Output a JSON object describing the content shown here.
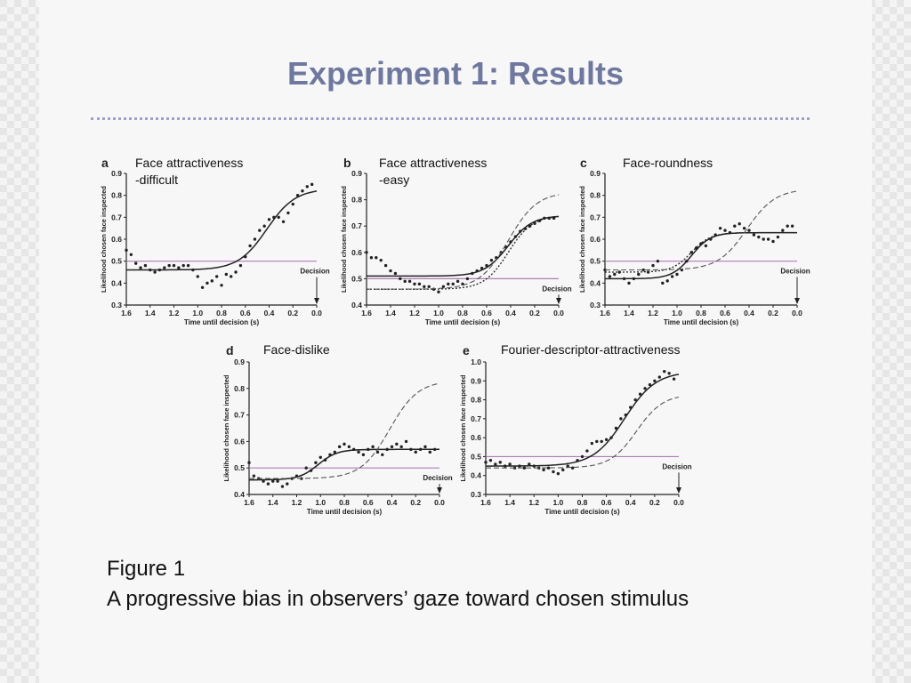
{
  "slide": {
    "title": "Experiment 1: Results",
    "caption_label": "Figure 1",
    "caption_text": "A progressive bias in observers’ gaze toward chosen stimulus"
  },
  "colors": {
    "title": "#6f789f",
    "rule": "#9aa2c6",
    "baseline": "#b07ab8",
    "ink": "#222222"
  },
  "chart_data": [
    {
      "panel": "a",
      "type": "scatter",
      "subtitle": "Face attractiveness\n-difficult",
      "xlabel": "Time until decision (s)",
      "ylabel": "Likelihood chosen face inspected",
      "xticks": [
        "1.6",
        "1.4",
        "1.2",
        "1.0",
        "0.8",
        "0.6",
        "0.4",
        "0.2",
        "0.0"
      ],
      "yticks": [
        "0.9",
        "0.8",
        "0.7",
        "0.6",
        "0.5",
        "0.4",
        "0.3"
      ],
      "xlim": [
        1.6,
        0.0
      ],
      "ylim": [
        0.3,
        0.9
      ],
      "annotation": "Decision",
      "baseline": 0.5,
      "series": [
        {
          "kind": "points",
          "x": [
            1.6,
            1.56,
            1.52,
            1.48,
            1.44,
            1.4,
            1.36,
            1.32,
            1.28,
            1.24,
            1.2,
            1.16,
            1.12,
            1.08,
            1.04,
            1.0,
            0.96,
            0.92,
            0.88,
            0.84,
            0.8,
            0.76,
            0.72,
            0.68,
            0.64,
            0.6,
            0.56,
            0.52,
            0.48,
            0.44,
            0.4,
            0.36,
            0.32,
            0.28,
            0.24,
            0.2,
            0.16,
            0.12,
            0.08,
            0.04
          ],
          "y": [
            0.55,
            0.53,
            0.49,
            0.47,
            0.48,
            0.46,
            0.45,
            0.46,
            0.47,
            0.48,
            0.48,
            0.47,
            0.48,
            0.48,
            0.46,
            0.43,
            0.38,
            0.4,
            0.41,
            0.43,
            0.39,
            0.44,
            0.43,
            0.45,
            0.48,
            0.52,
            0.57,
            0.6,
            0.64,
            0.66,
            0.69,
            0.7,
            0.7,
            0.68,
            0.72,
            0.76,
            0.8,
            0.82,
            0.84,
            0.85
          ]
        },
        {
          "kind": "solid",
          "fit": {
            "base": 0.46,
            "top": 0.83,
            "mid": 0.42,
            "scale": 0.12
          }
        }
      ]
    },
    {
      "panel": "b",
      "type": "scatter",
      "subtitle": "Face attractiveness\n-easy",
      "xlabel": "Time until decision (s)",
      "ylabel": "Likelihood chosen face inspected",
      "xticks": [
        "1.6",
        "1.4",
        "1.2",
        "1.0",
        "0.8",
        "0.6",
        "0.4",
        "0.2",
        "0.0"
      ],
      "yticks": [
        "0.9",
        "0.8",
        "0.7",
        "0.6",
        "0.5",
        "0.4"
      ],
      "xlim": [
        1.6,
        0.0
      ],
      "ylim": [
        0.4,
        0.9
      ],
      "annotation": "Decision",
      "baseline": 0.5,
      "series": [
        {
          "kind": "points",
          "x": [
            1.6,
            1.56,
            1.52,
            1.48,
            1.44,
            1.4,
            1.36,
            1.32,
            1.28,
            1.24,
            1.2,
            1.16,
            1.12,
            1.08,
            1.04,
            1.0,
            0.96,
            0.92,
            0.88,
            0.84,
            0.8,
            0.76,
            0.72,
            0.68,
            0.64,
            0.6,
            0.56,
            0.52,
            0.48,
            0.44,
            0.4,
            0.36,
            0.32,
            0.28,
            0.24,
            0.2,
            0.16,
            0.12,
            0.08,
            0.04
          ],
          "y": [
            0.6,
            0.58,
            0.58,
            0.57,
            0.55,
            0.53,
            0.52,
            0.5,
            0.49,
            0.49,
            0.48,
            0.48,
            0.47,
            0.47,
            0.46,
            0.45,
            0.47,
            0.48,
            0.48,
            0.49,
            0.48,
            0.5,
            0.52,
            0.53,
            0.54,
            0.55,
            0.57,
            0.58,
            0.6,
            0.62,
            0.64,
            0.66,
            0.68,
            0.69,
            0.7,
            0.71,
            0.72,
            0.73,
            0.73,
            0.73
          ]
        },
        {
          "kind": "solid",
          "fit": {
            "base": 0.51,
            "top": 0.74,
            "mid": 0.42,
            "scale": 0.1
          }
        },
        {
          "kind": "dotted",
          "fit": {
            "base": 0.46,
            "top": 0.74,
            "mid": 0.42,
            "scale": 0.1
          }
        },
        {
          "kind": "dashed",
          "fit": {
            "base": 0.46,
            "top": 0.83,
            "mid": 0.42,
            "scale": 0.12
          }
        }
      ]
    },
    {
      "panel": "c",
      "type": "scatter",
      "subtitle": "Face-roundness",
      "xlabel": "Time until decision (s)",
      "ylabel": "Likelihood chosen face inspected",
      "xticks": [
        "1.6",
        "1.4",
        "1.2",
        "1.0",
        "0.8",
        "0.6",
        "0.4",
        "0.2",
        "0.0"
      ],
      "yticks": [
        "0.9",
        "0.8",
        "0.7",
        "0.6",
        "0.5",
        "0.4",
        "0.3"
      ],
      "xlim": [
        1.6,
        0.0
      ],
      "ylim": [
        0.3,
        0.9
      ],
      "annotation": "Decision",
      "baseline": 0.5,
      "series": [
        {
          "kind": "points",
          "x": [
            1.6,
            1.56,
            1.52,
            1.48,
            1.44,
            1.4,
            1.36,
            1.32,
            1.28,
            1.24,
            1.2,
            1.16,
            1.12,
            1.08,
            1.04,
            1.0,
            0.96,
            0.92,
            0.88,
            0.84,
            0.8,
            0.76,
            0.72,
            0.68,
            0.64,
            0.6,
            0.56,
            0.52,
            0.48,
            0.44,
            0.4,
            0.36,
            0.32,
            0.28,
            0.24,
            0.2,
            0.16,
            0.12,
            0.08,
            0.04
          ],
          "y": [
            0.46,
            0.43,
            0.44,
            0.45,
            0.42,
            0.4,
            0.42,
            0.44,
            0.46,
            0.45,
            0.48,
            0.5,
            0.4,
            0.41,
            0.43,
            0.44,
            0.46,
            0.5,
            0.54,
            0.56,
            0.58,
            0.57,
            0.6,
            0.62,
            0.65,
            0.64,
            0.63,
            0.66,
            0.67,
            0.65,
            0.64,
            0.62,
            0.61,
            0.6,
            0.6,
            0.59,
            0.61,
            0.64,
            0.66,
            0.66
          ]
        },
        {
          "kind": "solid",
          "fit": {
            "base": 0.42,
            "top": 0.63,
            "mid": 0.88,
            "scale": 0.08
          }
        },
        {
          "kind": "dotted",
          "fit": {
            "base": 0.45,
            "top": 0.63,
            "mid": 0.88,
            "scale": 0.08
          }
        },
        {
          "kind": "dashed",
          "fit": {
            "base": 0.46,
            "top": 0.83,
            "mid": 0.42,
            "scale": 0.12
          }
        }
      ]
    },
    {
      "panel": "d",
      "type": "scatter",
      "subtitle": "Face-dislike",
      "xlabel": "Time until decision (s)",
      "ylabel": "Likelihood chosen face inspected",
      "xticks": [
        "1.6",
        "1.4",
        "1.2",
        "1.0",
        "0.8",
        "0.6",
        "0.4",
        "0.2",
        "0.0"
      ],
      "yticks": [
        "0.9",
        "0.8",
        "0.7",
        "0.6",
        "0.5",
        "0.4"
      ],
      "xlim": [
        1.6,
        0.0
      ],
      "ylim": [
        0.4,
        0.9
      ],
      "annotation": "Decision",
      "baseline": 0.5,
      "series": [
        {
          "kind": "points",
          "x": [
            1.6,
            1.56,
            1.52,
            1.48,
            1.44,
            1.4,
            1.36,
            1.32,
            1.28,
            1.24,
            1.2,
            1.16,
            1.12,
            1.08,
            1.04,
            1.0,
            0.96,
            0.92,
            0.88,
            0.84,
            0.8,
            0.76,
            0.72,
            0.68,
            0.64,
            0.6,
            0.56,
            0.52,
            0.48,
            0.44,
            0.4,
            0.36,
            0.32,
            0.28,
            0.24,
            0.2,
            0.16,
            0.12,
            0.08,
            0.04
          ],
          "y": [
            0.52,
            0.47,
            0.46,
            0.45,
            0.44,
            0.45,
            0.45,
            0.43,
            0.44,
            0.46,
            0.47,
            0.46,
            0.5,
            0.49,
            0.52,
            0.54,
            0.53,
            0.55,
            0.56,
            0.58,
            0.59,
            0.58,
            0.57,
            0.56,
            0.55,
            0.57,
            0.58,
            0.56,
            0.55,
            0.57,
            0.58,
            0.59,
            0.58,
            0.6,
            0.57,
            0.56,
            0.57,
            0.58,
            0.56,
            0.57
          ]
        },
        {
          "kind": "solid",
          "fit": {
            "base": 0.455,
            "top": 0.57,
            "mid": 1.02,
            "scale": 0.08
          }
        },
        {
          "kind": "dotted",
          "fit": {
            "base": 0.455,
            "top": 0.57,
            "mid": 1.02,
            "scale": 0.08
          }
        },
        {
          "kind": "dashed",
          "fit": {
            "base": 0.46,
            "top": 0.83,
            "mid": 0.42,
            "scale": 0.12
          }
        }
      ]
    },
    {
      "panel": "e",
      "type": "scatter",
      "subtitle": "Fourier-descriptor-attractiveness",
      "xlabel": "Time until decision (s)",
      "ylabel": "Likelihood chosen face inspected",
      "xticks": [
        "1.6",
        "1.4",
        "1.2",
        "1.0",
        "0.8",
        "0.6",
        "0.4",
        "0.2",
        "0.0"
      ],
      "yticks": [
        "1.0",
        "0.9",
        "0.8",
        "0.7",
        "0.6",
        "0.5",
        "0.4",
        "0.3"
      ],
      "xlim": [
        1.6,
        0.0
      ],
      "ylim": [
        0.3,
        1.0
      ],
      "annotation": "Decision",
      "baseline": 0.5,
      "series": [
        {
          "kind": "points",
          "x": [
            1.6,
            1.56,
            1.52,
            1.48,
            1.44,
            1.4,
            1.36,
            1.32,
            1.28,
            1.24,
            1.2,
            1.16,
            1.12,
            1.08,
            1.04,
            1.0,
            0.96,
            0.92,
            0.88,
            0.84,
            0.8,
            0.76,
            0.72,
            0.68,
            0.64,
            0.6,
            0.56,
            0.52,
            0.48,
            0.44,
            0.4,
            0.36,
            0.32,
            0.28,
            0.24,
            0.2,
            0.16,
            0.12,
            0.08,
            0.04
          ],
          "y": [
            0.47,
            0.48,
            0.46,
            0.47,
            0.45,
            0.46,
            0.44,
            0.45,
            0.44,
            0.46,
            0.45,
            0.44,
            0.43,
            0.44,
            0.42,
            0.41,
            0.43,
            0.45,
            0.44,
            0.48,
            0.5,
            0.53,
            0.57,
            0.58,
            0.58,
            0.59,
            0.6,
            0.65,
            0.7,
            0.72,
            0.76,
            0.8,
            0.83,
            0.86,
            0.88,
            0.9,
            0.92,
            0.95,
            0.94,
            0.91
          ]
        },
        {
          "kind": "solid",
          "fit": {
            "base": 0.45,
            "top": 0.95,
            "mid": 0.45,
            "scale": 0.13
          }
        },
        {
          "kind": "dashed",
          "fit": {
            "base": 0.44,
            "top": 0.83,
            "mid": 0.35,
            "scale": 0.11
          }
        }
      ]
    }
  ]
}
